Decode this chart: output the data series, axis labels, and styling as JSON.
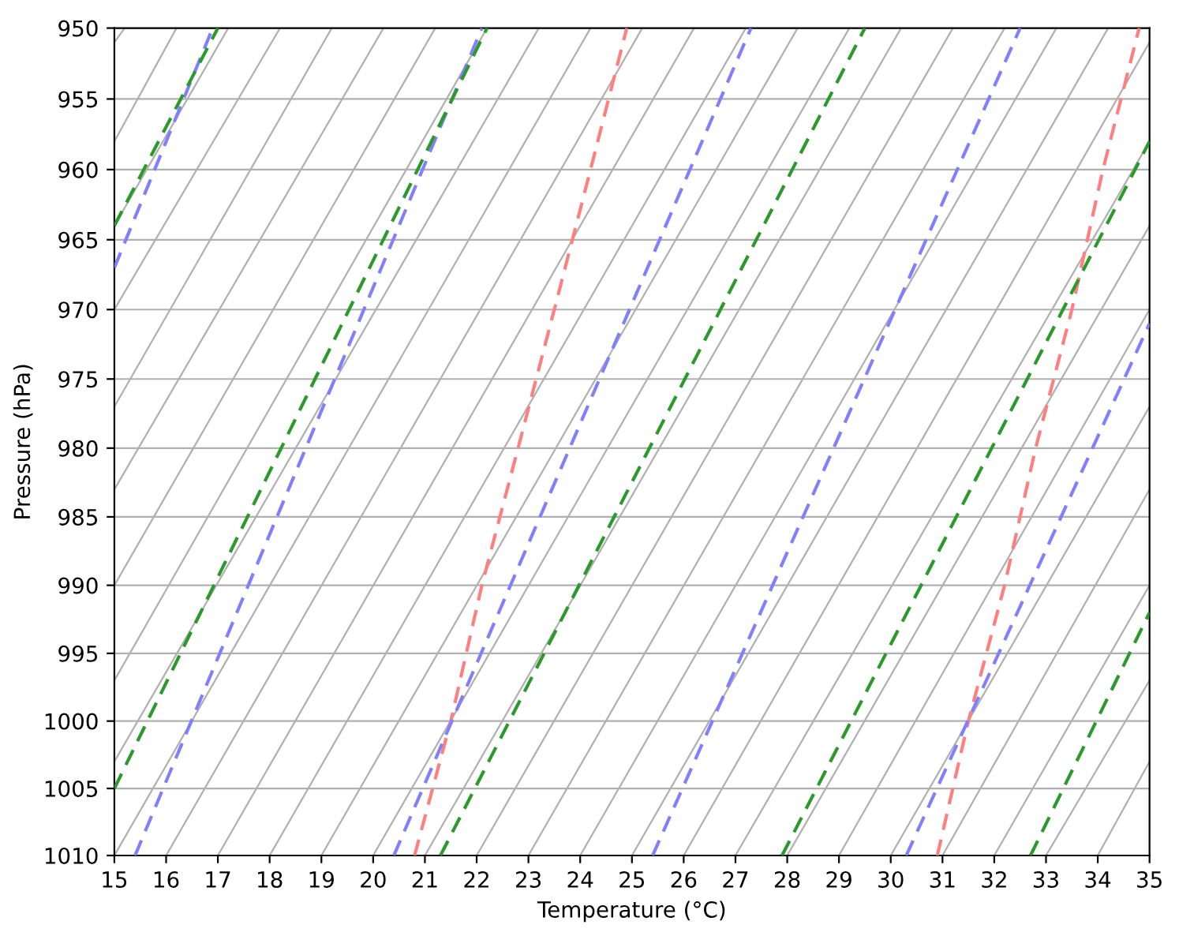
{
  "chart_data": {
    "type": "line",
    "xlabel": "Temperature (°C)",
    "ylabel": "Pressure (hPa)",
    "xlim": [
      15,
      35
    ],
    "xticks": [
      15,
      16,
      17,
      18,
      19,
      20,
      21,
      22,
      23,
      24,
      25,
      26,
      27,
      28,
      29,
      30,
      31,
      32,
      33,
      34,
      35
    ],
    "ylim": [
      1010,
      950
    ],
    "yticks": [
      950,
      955,
      960,
      965,
      970,
      975,
      980,
      985,
      990,
      995,
      1000,
      1005,
      1010
    ],
    "log": "y",
    "grid": "y",
    "series": [
      {
        "color": "#b0b0b0",
        "line_style": "solid",
        "x": [
          15,
          15.2
        ],
        "values": [
          951,
          950
        ]
      },
      {
        "color": "#b0b0b0",
        "line_style": "solid",
        "x": [
          15,
          16.2
        ],
        "values": [
          958,
          950
        ]
      },
      {
        "color": "#b0b0b0",
        "line_style": "solid",
        "x": [
          15,
          17.2
        ],
        "values": [
          964,
          950
        ]
      },
      {
        "color": "#b0b0b0",
        "line_style": "solid",
        "x": [
          15,
          18.2
        ],
        "values": [
          970,
          950
        ]
      },
      {
        "color": "#b0b0b0",
        "line_style": "solid",
        "x": [
          15,
          19.2
        ],
        "values": [
          977,
          950
        ]
      },
      {
        "color": "#b0b0b0",
        "line_style": "solid",
        "x": [
          15,
          20.2
        ],
        "values": [
          983,
          950
        ]
      },
      {
        "color": "#b0b0b0",
        "line_style": "solid",
        "x": [
          15,
          21.2
        ],
        "values": [
          990,
          950
        ]
      },
      {
        "color": "#b0b0b0",
        "line_style": "solid",
        "x": [
          15,
          22.2
        ],
        "values": [
          997,
          950
        ]
      },
      {
        "color": "#b0b0b0",
        "line_style": "solid",
        "x": [
          15,
          23.2
        ],
        "values": [
          1003,
          950
        ]
      },
      {
        "color": "#b0b0b0",
        "line_style": "solid",
        "x": [
          15,
          24.2
        ],
        "values": [
          1010,
          950
        ]
      },
      {
        "color": "#b0b0b0",
        "line_style": "solid",
        "x": [
          16,
          25.2
        ],
        "values": [
          1010,
          950
        ]
      },
      {
        "color": "#b0b0b0",
        "line_style": "solid",
        "x": [
          17,
          26.2
        ],
        "values": [
          1010,
          950
        ]
      },
      {
        "color": "#b0b0b0",
        "line_style": "solid",
        "x": [
          18,
          27.2
        ],
        "values": [
          1010,
          950
        ]
      },
      {
        "color": "#b0b0b0",
        "line_style": "solid",
        "x": [
          19,
          28.2
        ],
        "values": [
          1010,
          950
        ]
      },
      {
        "color": "#b0b0b0",
        "line_style": "solid",
        "x": [
          20,
          29.2
        ],
        "values": [
          1010,
          950
        ]
      },
      {
        "color": "#b0b0b0",
        "line_style": "solid",
        "x": [
          21,
          30.2
        ],
        "values": [
          1010,
          950
        ]
      },
      {
        "color": "#b0b0b0",
        "line_style": "solid",
        "x": [
          22,
          31.2
        ],
        "values": [
          1010,
          950
        ]
      },
      {
        "color": "#b0b0b0",
        "line_style": "solid",
        "x": [
          23,
          32.2
        ],
        "values": [
          1010,
          950
        ]
      },
      {
        "color": "#b0b0b0",
        "line_style": "solid",
        "x": [
          24,
          33.2
        ],
        "values": [
          1010,
          950
        ]
      },
      {
        "color": "#b0b0b0",
        "line_style": "solid",
        "x": [
          25,
          34.2
        ],
        "values": [
          1010,
          950
        ]
      },
      {
        "color": "#b0b0b0",
        "line_style": "solid",
        "x": [
          26,
          35
        ],
        "values": [
          1010,
          951
        ]
      },
      {
        "color": "#b0b0b0",
        "line_style": "solid",
        "x": [
          27,
          35
        ],
        "values": [
          1010,
          958
        ]
      },
      {
        "color": "#b0b0b0",
        "line_style": "solid",
        "x": [
          28,
          35
        ],
        "values": [
          1010,
          964
        ]
      },
      {
        "color": "#b0b0b0",
        "line_style": "solid",
        "x": [
          29,
          35
        ],
        "values": [
          1010,
          970
        ]
      },
      {
        "color": "#b0b0b0",
        "line_style": "solid",
        "x": [
          30,
          35
        ],
        "values": [
          1010,
          977
        ]
      },
      {
        "color": "#b0b0b0",
        "line_style": "solid",
        "x": [
          31,
          35
        ],
        "values": [
          1010,
          983
        ]
      },
      {
        "color": "#b0b0b0",
        "line_style": "solid",
        "x": [
          32,
          35
        ],
        "values": [
          1010,
          990
        ]
      },
      {
        "color": "#b0b0b0",
        "line_style": "solid",
        "x": [
          33,
          35
        ],
        "values": [
          1010,
          997
        ]
      },
      {
        "color": "#b0b0b0",
        "line_style": "solid",
        "x": [
          34,
          35
        ],
        "values": [
          1010,
          1003
        ]
      },
      {
        "color": "#ff7f7f",
        "line_style": "dashed",
        "x": [
          20.8,
          21.5,
          22.1,
          22.8,
          23.5,
          24.2,
          24.9
        ],
        "values": [
          1010,
          1000,
          990,
          980,
          970,
          960,
          950
        ]
      },
      {
        "color": "#ff7f7f",
        "line_style": "dashed",
        "x": [
          30.9,
          31.5,
          32.2,
          32.8,
          33.5,
          34.1,
          34.8
        ],
        "values": [
          1010,
          1000,
          990,
          980,
          970,
          960,
          950
        ]
      },
      {
        "color": "#7f7fff",
        "line_style": "dashed",
        "x": [
          15,
          16.9
        ],
        "values": [
          967,
          950
        ]
      },
      {
        "color": "#7f7fff",
        "line_style": "dashed",
        "x": [
          15.4,
          22.1
        ],
        "values": [
          1010,
          950
        ]
      },
      {
        "color": "#7f7fff",
        "line_style": "dashed",
        "x": [
          20.4,
          27.3
        ],
        "values": [
          1010,
          950
        ]
      },
      {
        "color": "#7f7fff",
        "line_style": "dashed",
        "x": [
          25.4,
          32.5
        ],
        "values": [
          1010,
          950
        ]
      },
      {
        "color": "#7f7fff",
        "line_style": "dashed",
        "x": [
          30.3,
          35
        ],
        "values": [
          1010,
          971
        ]
      },
      {
        "color": "#2a9a2a",
        "line_style": "dashed",
        "x": [
          15,
          17.0
        ],
        "values": [
          964,
          950
        ]
      },
      {
        "color": "#2a9a2a",
        "line_style": "dashed",
        "x": [
          15,
          22.2
        ],
        "values": [
          1005,
          950
        ]
      },
      {
        "color": "#2a9a2a",
        "line_style": "dashed",
        "x": [
          21.3,
          29.5
        ],
        "values": [
          1010,
          950
        ]
      },
      {
        "color": "#2a9a2a",
        "line_style": "dashed",
        "x": [
          27.9,
          35
        ],
        "values": [
          1010,
          958
        ]
      },
      {
        "color": "#2a9a2a",
        "line_style": "dashed",
        "x": [
          32.7,
          35
        ],
        "values": [
          1010,
          992
        ]
      }
    ]
  }
}
